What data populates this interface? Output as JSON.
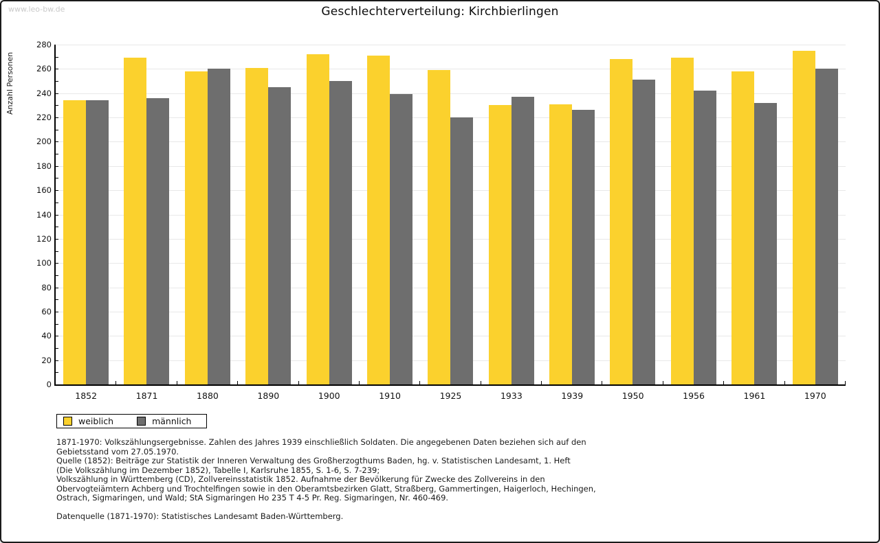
{
  "watermark": "www.leo-bw.de",
  "title": "Geschlechterverteilung: Kirchbierlingen",
  "chart_data": {
    "type": "bar",
    "title": "Geschlechterverteilung: Kirchbierlingen",
    "xlabel": "",
    "ylabel": "Anzahl Personen",
    "ylim": [
      0,
      280
    ],
    "ytick_step": 20,
    "ytick_minor_step": 10,
    "grid": "horizontal",
    "legend_position": "bottom-left",
    "categories": [
      "1852",
      "1871",
      "1880",
      "1890",
      "1900",
      "1910",
      "1925",
      "1933",
      "1939",
      "1950",
      "1956",
      "1961",
      "1970"
    ],
    "series": [
      {
        "name": "weiblich",
        "color": "#FBD12D",
        "values": [
          234,
          269,
          258,
          261,
          272,
          271,
          259,
          230,
          231,
          268,
          269,
          258,
          275
        ]
      },
      {
        "name": "männlich",
        "color": "#6E6E6E",
        "values": [
          234,
          236,
          260,
          245,
          250,
          239,
          220,
          237,
          226,
          251,
          242,
          232,
          260
        ]
      }
    ]
  },
  "notes": {
    "lines": [
      "1871-1970: Volkszählungsergebnisse. Zahlen des Jahres 1939 einschließlich Soldaten. Die angegebenen Daten beziehen sich auf den",
      "Gebietsstand vom 27.05.1970.",
      "Quelle (1852): Beiträge zur Statistik der Inneren Verwaltung des Großherzogthums Baden, hg. v. Statistischen Landesamt, 1. Heft",
      "(Die Volkszählung im Dezember 1852), Tabelle I, Karlsruhe 1855, S. 1-6, S. 7-239;",
      "Volkszählung in Württemberg (CD), Zollvereinsstatistik 1852. Aufnahme der Bevölkerung für Zwecke des Zollvereins in den",
      "Obervogteiämtern Achberg und Trochtelfingen sowie in den Oberamtsbezirken Glatt, Straßberg, Gammertingen, Haigerloch, Hechingen,",
      "Ostrach, Sigmaringen, und Wald; StA Sigmaringen Ho 235 T 4-5 Pr. Reg. Sigmaringen, Nr. 460-469."
    ],
    "source": "Datenquelle (1871-1970): Statistisches Landesamt Baden-Württemberg."
  }
}
